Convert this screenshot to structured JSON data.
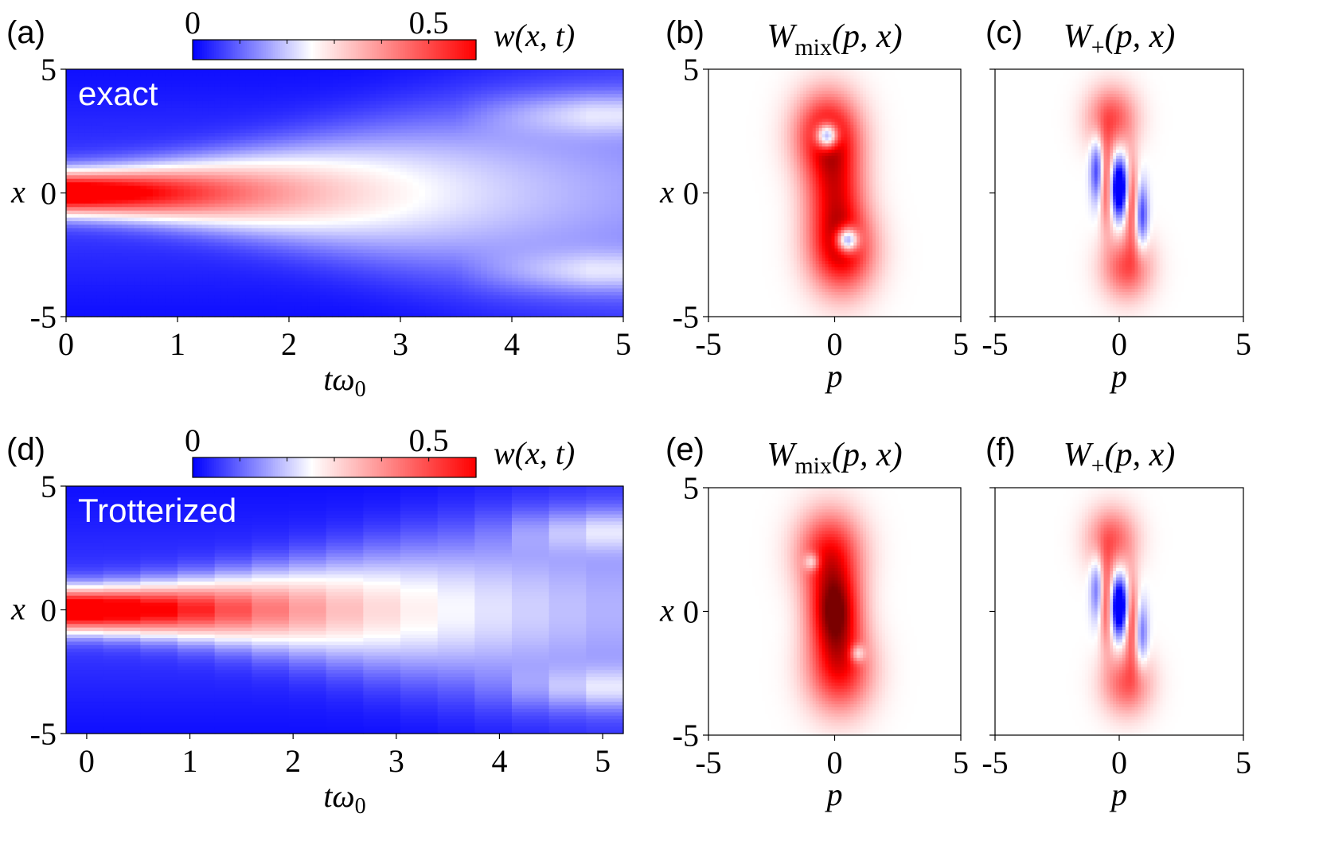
{
  "chart_data": [
    {
      "panel": "(a)",
      "type": "heatmap",
      "annotation": "exact",
      "colorbar": {
        "label": "w(x, t)",
        "ticks": [
          "0",
          "0.5"
        ],
        "range": [
          0,
          0.6
        ]
      },
      "xlabel": "tω0",
      "ylabel": "x",
      "xticks": [
        "0",
        "1",
        "2",
        "3",
        "4",
        "5"
      ],
      "yticks": [
        "5",
        "0",
        "-5"
      ],
      "xlim": [
        0,
        5
      ],
      "ylim": [
        -5,
        5
      ],
      "model": {
        "mode": "continuous",
        "sigma0": 0.6,
        "spread_rate": 0.55,
        "peak": 0.6,
        "side_lobes": [
          3.2,
          -3.2
        ],
        "side_onset": 3.5
      }
    },
    {
      "panel": "(b)",
      "type": "heatmap",
      "title": "Wmix(p, x)",
      "xlabel": "p",
      "ylabel": "x",
      "xticks": [
        "-5",
        "0",
        "5"
      ],
      "yticks": [
        "5",
        "0",
        "-5"
      ],
      "xlim": [
        -5,
        5
      ],
      "ylim": [
        -5,
        5
      ],
      "features": {
        "positive_blobs": [
          {
            "p": -0.3,
            "x": 2.4,
            "sp": 0.9,
            "sx": 1.2,
            "a": 1.0
          },
          {
            "p": 0.3,
            "x": -2.4,
            "sp": 0.9,
            "sx": 1.2,
            "a": 1.0
          },
          {
            "p": 0.0,
            "x": 0.0,
            "sp": 0.8,
            "sx": 1.5,
            "a": 0.9
          }
        ],
        "negative_blobs": [
          {
            "p": -0.3,
            "x": 2.3,
            "sp": 0.3,
            "sx": 0.35,
            "a": 1.5
          },
          {
            "p": 0.5,
            "x": -1.9,
            "sp": 0.3,
            "sx": 0.35,
            "a": 1.5
          }
        ]
      }
    },
    {
      "panel": "(c)",
      "type": "heatmap",
      "title": "W+(p, x)",
      "xlabel": "p",
      "xticks": [
        "-5",
        "0",
        "5"
      ],
      "xlim": [
        -5,
        5
      ],
      "ylim": [
        -5,
        5
      ],
      "features": {
        "positive_blobs": [
          {
            "p": -0.3,
            "x": 3.0,
            "sp": 0.7,
            "sx": 0.9,
            "a": 0.7
          },
          {
            "p": 0.3,
            "x": -3.0,
            "sp": 0.7,
            "sx": 0.9,
            "a": 0.7
          },
          {
            "p": -0.5,
            "x": 0.3,
            "sp": 0.2,
            "sx": 1.2,
            "a": 0.8
          },
          {
            "p": 0.5,
            "x": -0.3,
            "sp": 0.2,
            "sx": 1.2,
            "a": 0.8
          }
        ],
        "negative_blobs": [
          {
            "p": 0.0,
            "x": 0.2,
            "sp": 0.25,
            "sx": 0.8,
            "a": 1.6
          },
          {
            "p": -0.9,
            "x": 0.9,
            "sp": 0.18,
            "sx": 0.9,
            "a": 0.8
          },
          {
            "p": 0.9,
            "x": -0.9,
            "sp": 0.18,
            "sx": 0.9,
            "a": 0.8
          }
        ]
      }
    },
    {
      "panel": "(d)",
      "type": "heatmap",
      "annotation": "Trotterized",
      "colorbar": {
        "label": "w(x, t)",
        "ticks": [
          "0",
          "0.5"
        ],
        "range": [
          0,
          0.6
        ]
      },
      "xlabel": "tω0",
      "ylabel": "x",
      "xticks": [
        "0",
        "1",
        "2",
        "3",
        "4",
        "5"
      ],
      "yticks": [
        "5",
        "0",
        "-5"
      ],
      "xlim": [
        -0.2,
        5.2
      ],
      "ylim": [
        -5,
        5
      ],
      "model": {
        "mode": "stepped",
        "steps": 15,
        "sigma0": 0.6,
        "spread_rate": 0.45,
        "peak": 0.6,
        "side_lobes": [
          3.2,
          -3.2
        ],
        "side_onset": 3.8
      }
    },
    {
      "panel": "(e)",
      "type": "heatmap",
      "title": "Wmix(p, x)",
      "xlabel": "p",
      "ylabel": "x",
      "xticks": [
        "-5",
        "0",
        "5"
      ],
      "yticks": [
        "5",
        "0",
        "-5"
      ],
      "xlim": [
        -5,
        5
      ],
      "ylim": [
        -5,
        5
      ],
      "features": {
        "positive_blobs": [
          {
            "p": -0.2,
            "x": 2.4,
            "sp": 0.9,
            "sx": 1.2,
            "a": 0.9
          },
          {
            "p": 0.2,
            "x": -2.4,
            "sp": 0.9,
            "sx": 1.2,
            "a": 0.9
          },
          {
            "p": 0.0,
            "x": 0.0,
            "sp": 0.7,
            "sx": 1.2,
            "a": 1.3
          }
        ],
        "negative_blobs": [
          {
            "p": -0.9,
            "x": 2.0,
            "sp": 0.2,
            "sx": 0.25,
            "a": 0.6
          },
          {
            "p": 0.9,
            "x": -1.7,
            "sp": 0.2,
            "sx": 0.25,
            "a": 0.6
          }
        ]
      }
    },
    {
      "panel": "(f)",
      "type": "heatmap",
      "title": "W+(p, x)",
      "xlabel": "p",
      "xticks": [
        "-5",
        "0",
        "5"
      ],
      "xlim": [
        -5,
        5
      ],
      "ylim": [
        -5,
        5
      ],
      "features": {
        "positive_blobs": [
          {
            "p": -0.3,
            "x": 2.9,
            "sp": 0.7,
            "sx": 0.9,
            "a": 0.65
          },
          {
            "p": 0.3,
            "x": -2.9,
            "sp": 0.7,
            "sx": 0.9,
            "a": 0.65
          },
          {
            "p": -0.5,
            "x": 0.3,
            "sp": 0.2,
            "sx": 1.2,
            "a": 0.8
          },
          {
            "p": 0.5,
            "x": -0.3,
            "sp": 0.2,
            "sx": 1.2,
            "a": 0.8
          }
        ],
        "negative_blobs": [
          {
            "p": 0.0,
            "x": 0.2,
            "sp": 0.25,
            "sx": 0.8,
            "a": 1.6
          },
          {
            "p": -0.9,
            "x": 0.9,
            "sp": 0.18,
            "sx": 0.9,
            "a": 0.6
          },
          {
            "p": 0.9,
            "x": -0.9,
            "sp": 0.18,
            "sx": 0.9,
            "a": 0.6
          }
        ]
      }
    }
  ],
  "colors": {
    "negative": "#0000ff",
    "zero": "#ffffff",
    "positive": "#ff0000",
    "deep_positive": "#7a0000"
  }
}
